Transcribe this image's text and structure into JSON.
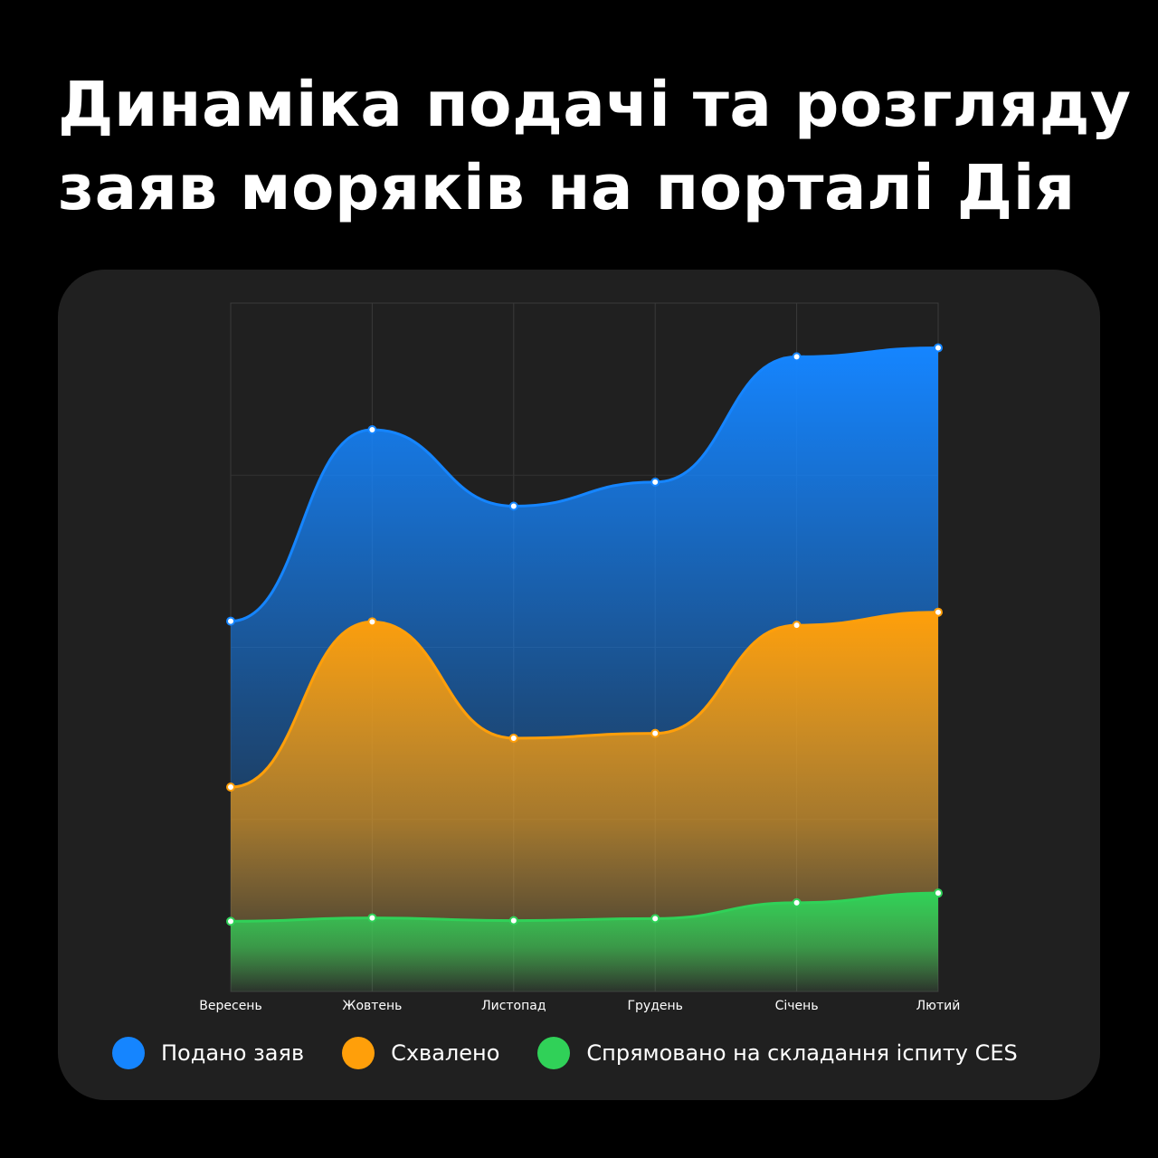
{
  "title": {
    "line1": "Динаміка подачі та розгляду",
    "line2": "заяв моряків на порталі Дія"
  },
  "chart_data": {
    "type": "area",
    "categories": [
      "Вересень",
      "Жовтень",
      "Листопад",
      "Грудень",
      "Січень",
      "Лютий"
    ],
    "ylim": [
      0,
      100
    ],
    "grid": true,
    "legend_position": "bottom",
    "series": [
      {
        "name": "Подано заяв",
        "color": "#1585ff",
        "values": [
          53.8,
          81.6,
          70.5,
          74.0,
          92.2,
          93.5
        ]
      },
      {
        "name": "Схвалено",
        "color": "#ff9f0a",
        "values": [
          29.7,
          53.7,
          36.8,
          37.5,
          53.2,
          55.1
        ]
      },
      {
        "name": "Спрямовано на складання іспиту CES",
        "color": "#30d158",
        "values": [
          10.2,
          10.7,
          10.3,
          10.6,
          12.9,
          14.3
        ]
      }
    ]
  }
}
